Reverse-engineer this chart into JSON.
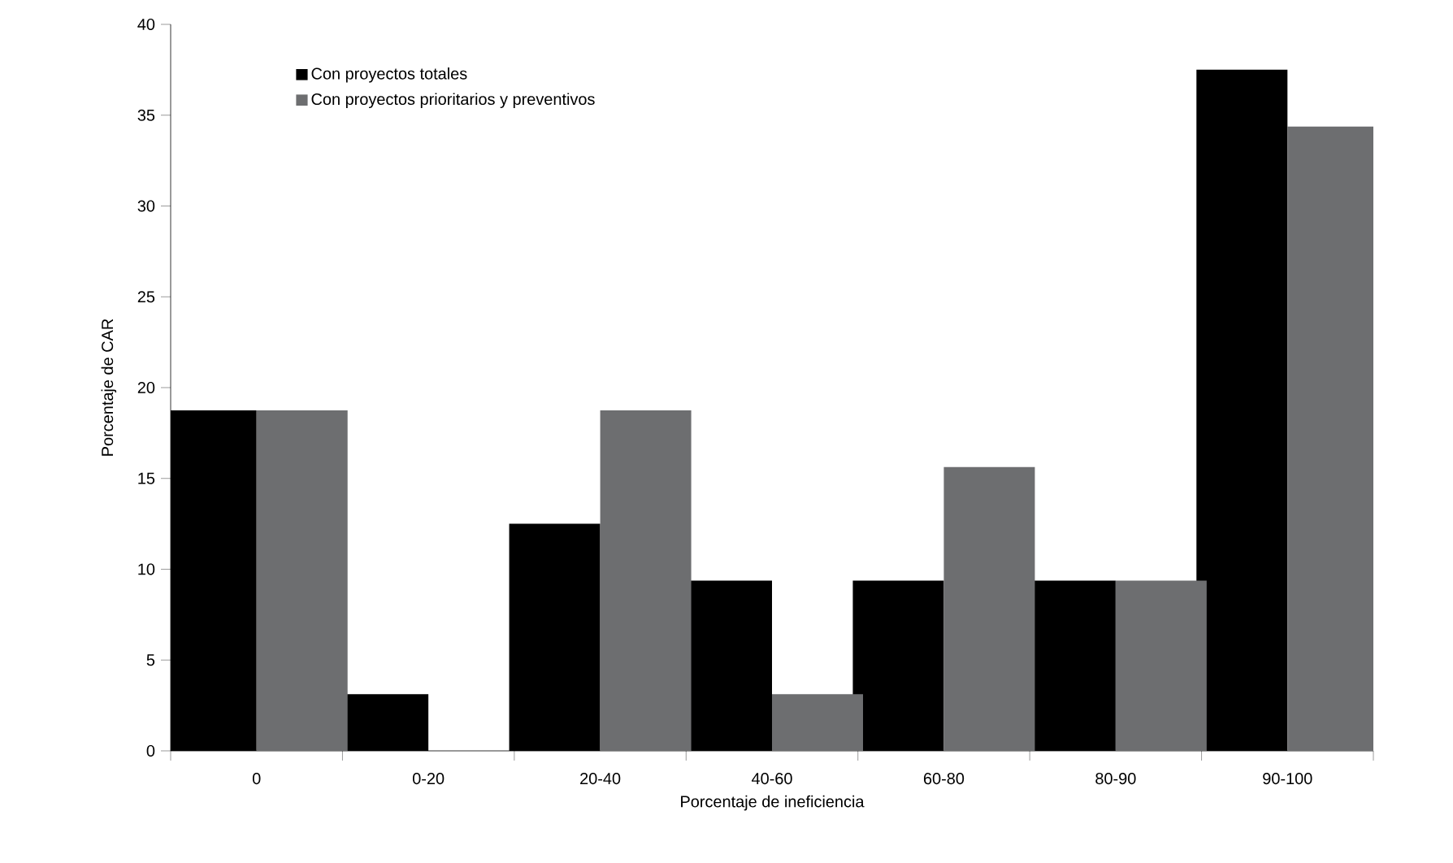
{
  "chart_data": {
    "type": "bar",
    "xlabel": "Porcentaje de ineficiencia",
    "ylabel": "Porcentaje de CAR",
    "categories": [
      "0",
      "0-20",
      "20-40",
      "40-60",
      "60-80",
      "80-90",
      "90-100"
    ],
    "series": [
      {
        "name": "Con proyectos totales",
        "color": "#000000",
        "values": [
          18.75,
          3.125,
          12.5,
          9.375,
          9.375,
          9.375,
          37.5
        ]
      },
      {
        "name": "Con proyectos prioritarios y preventivos",
        "color": "#6d6e70",
        "values": [
          18.75,
          0,
          18.75,
          3.125,
          15.625,
          9.375,
          34.375
        ]
      }
    ],
    "ylim": [
      0,
      40
    ],
    "yticks": [
      0,
      5,
      10,
      15,
      20,
      25,
      30,
      35,
      40
    ],
    "grid": false,
    "legend": "top left"
  }
}
